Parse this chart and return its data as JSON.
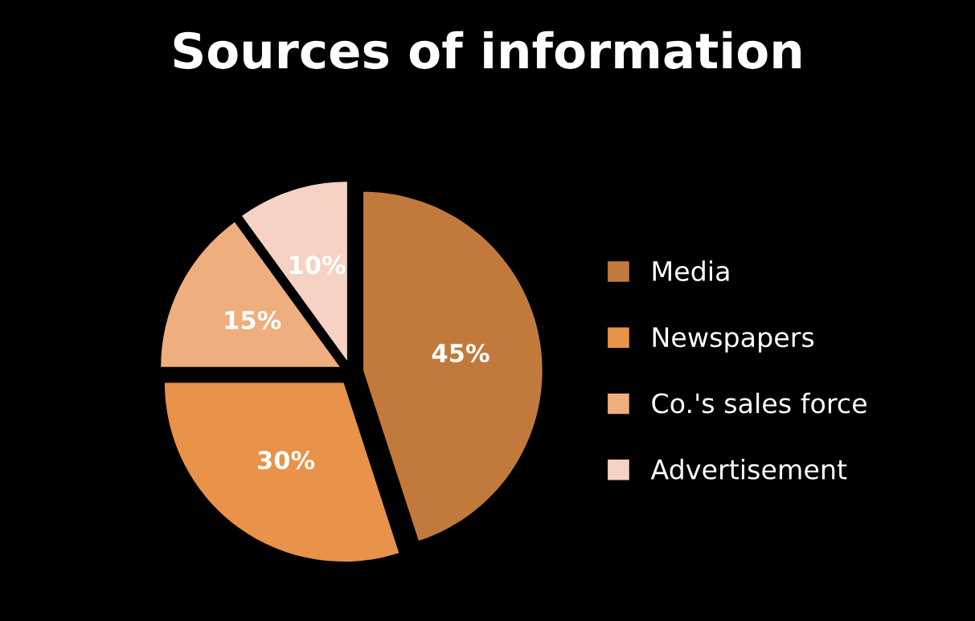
{
  "chart_data": {
    "type": "pie",
    "title": "Sources of information",
    "categories": [
      "Media",
      "Newspapers",
      "Co.'s sales force",
      "Advertisement"
    ],
    "values": [
      45,
      30,
      15,
      10
    ],
    "colors": [
      "#c27a3c",
      "#e8924a",
      "#eeae7e",
      "#f6d2c4"
    ],
    "value_labels": [
      "45%",
      "30%",
      "15%",
      "10%"
    ],
    "legend": "right"
  }
}
